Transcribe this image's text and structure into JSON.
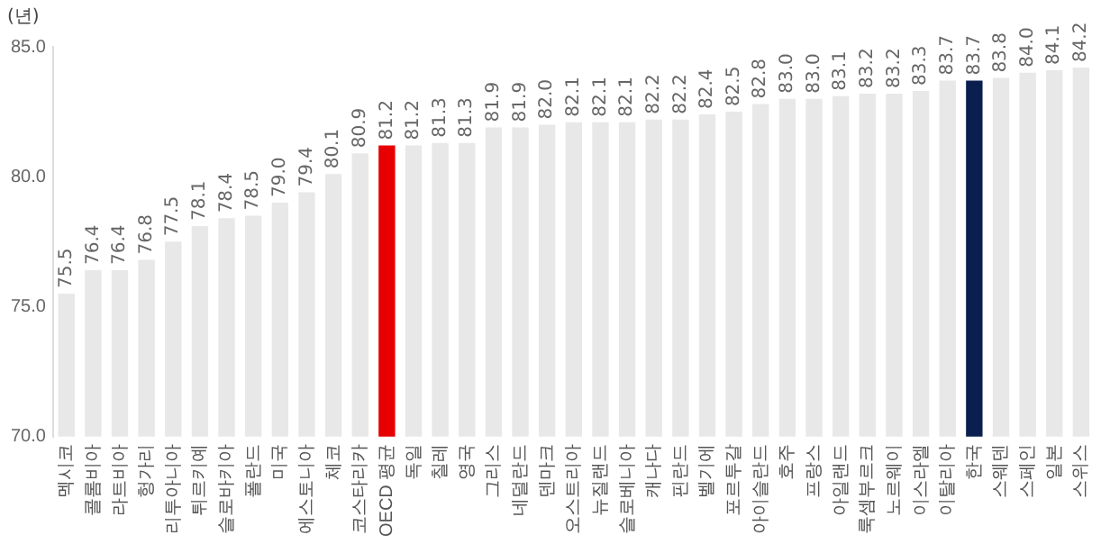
{
  "chart_data": {
    "type": "bar",
    "ylabel": "(년)",
    "categories": [
      "멕시코",
      "콜롬비아",
      "라트비아",
      "헝가리",
      "리투아니아",
      "튀르키예",
      "슬로바키아",
      "폴란드",
      "미국",
      "에스토니아",
      "체코",
      "코스타리카",
      "OECD 평균",
      "독일",
      "칠레",
      "영국",
      "그리스",
      "네덜란드",
      "덴마크",
      "오스트리아",
      "뉴질랜드",
      "슬로베니아",
      "캐나다",
      "핀란드",
      "벨기에",
      "포르투갈",
      "아이슬란드",
      "호주",
      "프랑스",
      "아일랜드",
      "룩셈부르크",
      "노르웨이",
      "이스라엘",
      "이탈리아",
      "한국",
      "스웨덴",
      "스페인",
      "일본",
      "스위스"
    ],
    "values": [
      75.5,
      76.4,
      76.4,
      76.8,
      77.5,
      78.1,
      78.4,
      78.5,
      79.0,
      79.4,
      80.1,
      80.9,
      81.2,
      81.2,
      81.3,
      81.3,
      81.9,
      81.9,
      82.0,
      82.1,
      82.1,
      82.1,
      82.2,
      82.2,
      82.4,
      82.5,
      82.8,
      83.0,
      83.0,
      83.1,
      83.2,
      83.2,
      83.3,
      83.7,
      83.7,
      83.8,
      84.0,
      84.1,
      84.2
    ],
    "colors": [
      "#e8e8e8",
      "#e8e8e8",
      "#e8e8e8",
      "#e8e8e8",
      "#e8e8e8",
      "#e8e8e8",
      "#e8e8e8",
      "#e8e8e8",
      "#e8e8e8",
      "#e8e8e8",
      "#e8e8e8",
      "#e8e8e8",
      "#e60000",
      "#e8e8e8",
      "#e8e8e8",
      "#e8e8e8",
      "#e8e8e8",
      "#e8e8e8",
      "#e8e8e8",
      "#e8e8e8",
      "#e8e8e8",
      "#e8e8e8",
      "#e8e8e8",
      "#e8e8e8",
      "#e8e8e8",
      "#e8e8e8",
      "#e8e8e8",
      "#e8e8e8",
      "#e8e8e8",
      "#e8e8e8",
      "#e8e8e8",
      "#e8e8e8",
      "#e8e8e8",
      "#e8e8e8",
      "#0b1f4f",
      "#e8e8e8",
      "#e8e8e8",
      "#e8e8e8",
      "#e8e8e8"
    ],
    "value_labels": [
      "75.5",
      "76.4",
      "76.4",
      "76.8",
      "77.5",
      "78.1",
      "78.4",
      "78.5",
      "79.0",
      "79.4",
      "80.1",
      "80.9",
      "81.2",
      "81.2",
      "81.3",
      "81.3",
      "81.9",
      "81.9",
      "82.0",
      "82.1",
      "82.1",
      "82.1",
      "82.2",
      "82.2",
      "82.4",
      "82.5",
      "82.8",
      "83.0",
      "83.0",
      "83.1",
      "83.2",
      "83.2",
      "83.3",
      "83.7",
      "83.7",
      "83.8",
      "84.0",
      "84.1",
      "84.2"
    ],
    "ylim": [
      70,
      85
    ],
    "yticks": [
      {
        "value": 70,
        "label": "70.0"
      },
      {
        "value": 75,
        "label": "75.0"
      },
      {
        "value": 80,
        "label": "80.0"
      },
      {
        "value": 85,
        "label": "85.0"
      }
    ],
    "grid": false,
    "legend": false
  }
}
